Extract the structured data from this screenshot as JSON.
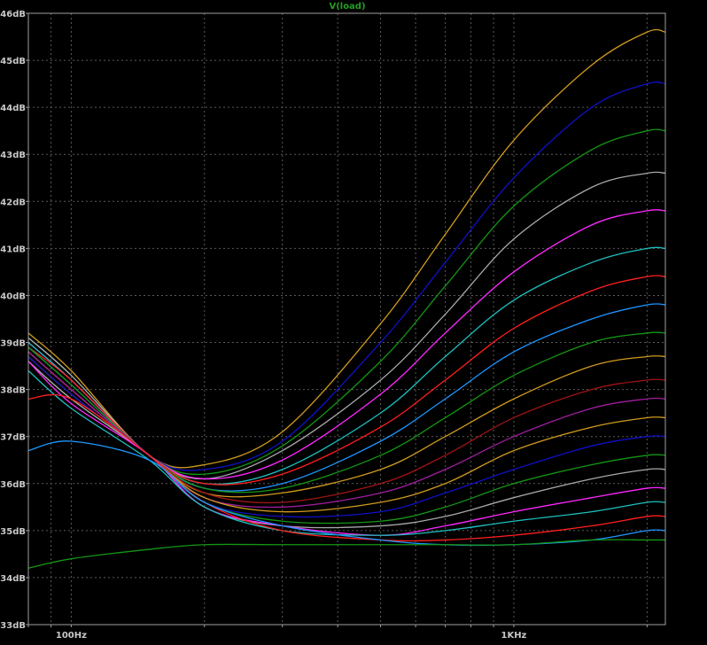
{
  "chart_data": {
    "type": "line",
    "title": "V(load)",
    "x_scale": "log",
    "xlim": [
      80,
      2200
    ],
    "ylim": [
      33,
      46
    ],
    "y_unit": "dB",
    "y_ticks": [
      "33dB",
      "34dB",
      "35dB",
      "36dB",
      "37dB",
      "38dB",
      "39dB",
      "40dB",
      "41dB",
      "42dB",
      "43dB",
      "44dB",
      "45dB",
      "46dB"
    ],
    "y_tick_values": [
      33,
      34,
      35,
      36,
      37,
      38,
      39,
      40,
      41,
      42,
      43,
      44,
      45,
      46
    ],
    "x_ticks": [
      "100Hz",
      "1KHz"
    ],
    "x_tick_values": [
      100,
      1000
    ],
    "grid": true,
    "x": [
      80,
      100,
      150,
      200,
      300,
      500,
      700,
      1000,
      1500,
      2000,
      2200
    ],
    "series": [
      {
        "color": "#d09a1e",
        "values": [
          39.2,
          38.4,
          36.6,
          36.4,
          37.1,
          39.4,
          41.3,
          43.3,
          44.9,
          45.6,
          45.6
        ]
      },
      {
        "color": "#1010c8",
        "values": [
          39.1,
          38.3,
          36.6,
          36.3,
          36.9,
          39.0,
          40.7,
          42.5,
          44.0,
          44.5,
          44.5
        ]
      },
      {
        "color": "#149614",
        "values": [
          39.1,
          38.3,
          36.6,
          36.2,
          36.8,
          38.6,
          40.2,
          41.9,
          43.1,
          43.5,
          43.5
        ]
      },
      {
        "color": "#a8a8a8",
        "values": [
          39.1,
          38.3,
          36.6,
          36.1,
          36.7,
          38.2,
          39.6,
          41.2,
          42.3,
          42.6,
          42.6
        ]
      },
      {
        "color": "#ff28ff",
        "values": [
          39.0,
          38.2,
          36.6,
          36.1,
          36.5,
          37.9,
          39.2,
          40.5,
          41.5,
          41.8,
          41.8
        ]
      },
      {
        "color": "#1ebebe",
        "values": [
          39.0,
          38.2,
          36.6,
          36.0,
          36.3,
          37.5,
          38.7,
          39.9,
          40.7,
          41.0,
          41.0
        ]
      },
      {
        "color": "#ff1e1e",
        "values": [
          38.9,
          38.2,
          36.6,
          36.0,
          36.2,
          37.2,
          38.2,
          39.3,
          40.1,
          40.4,
          40.4
        ]
      },
      {
        "color": "#1e96ff",
        "values": [
          38.9,
          38.1,
          36.6,
          35.9,
          36.0,
          36.9,
          37.8,
          38.8,
          39.5,
          39.8,
          39.8
        ]
      },
      {
        "color": "#149614",
        "values": [
          38.9,
          38.1,
          36.6,
          35.9,
          35.9,
          36.6,
          37.4,
          38.3,
          39.0,
          39.2,
          39.2
        ]
      },
      {
        "color": "#d09a1e",
        "values": [
          38.8,
          38.0,
          36.6,
          35.8,
          35.8,
          36.3,
          37.0,
          37.8,
          38.5,
          38.7,
          38.7
        ]
      },
      {
        "color": "#a01414",
        "values": [
          38.8,
          38.0,
          36.6,
          35.8,
          35.6,
          36.0,
          36.6,
          37.4,
          38.0,
          38.2,
          38.2
        ]
      },
      {
        "color": "#a01ea0",
        "values": [
          38.8,
          38.0,
          36.6,
          35.7,
          35.5,
          35.8,
          36.3,
          37.0,
          37.6,
          37.8,
          37.8
        ]
      },
      {
        "color": "#d09a1e",
        "values": [
          38.7,
          37.9,
          36.6,
          35.7,
          35.4,
          35.6,
          36.0,
          36.7,
          37.2,
          37.4,
          37.4
        ]
      },
      {
        "color": "#1010c8",
        "values": [
          38.7,
          37.9,
          36.6,
          35.6,
          35.3,
          35.4,
          35.8,
          36.3,
          36.8,
          37.0,
          37.0
        ]
      },
      {
        "color": "#149614",
        "values": [
          38.6,
          37.8,
          36.6,
          35.6,
          35.2,
          35.2,
          35.5,
          36.0,
          36.4,
          36.6,
          36.6
        ]
      },
      {
        "color": "#a8a8a8",
        "values": [
          38.6,
          37.8,
          36.6,
          35.5,
          35.1,
          35.1,
          35.3,
          35.7,
          36.1,
          36.3,
          36.3
        ]
      },
      {
        "color": "#ff28ff",
        "values": [
          38.6,
          37.7,
          36.6,
          35.5,
          35.1,
          34.9,
          35.1,
          35.4,
          35.7,
          35.9,
          35.9
        ]
      },
      {
        "color": "#1ebebe",
        "values": [
          38.4,
          37.6,
          36.5,
          35.5,
          35.0,
          34.9,
          35.0,
          35.2,
          35.4,
          35.6,
          35.6
        ]
      },
      {
        "color": "#ff1e1e",
        "values": [
          37.8,
          37.8,
          36.6,
          35.6,
          35.0,
          34.8,
          34.8,
          34.9,
          35.1,
          35.3,
          35.3
        ]
      },
      {
        "color": "#1e96ff",
        "values": [
          36.7,
          36.9,
          36.5,
          35.6,
          35.1,
          34.8,
          34.7,
          34.7,
          34.8,
          35.0,
          35.0
        ]
      },
      {
        "color": "#149614",
        "values": [
          34.2,
          34.4,
          34.6,
          34.7,
          34.7,
          34.7,
          34.7,
          34.7,
          34.8,
          34.8,
          34.8
        ]
      }
    ]
  }
}
